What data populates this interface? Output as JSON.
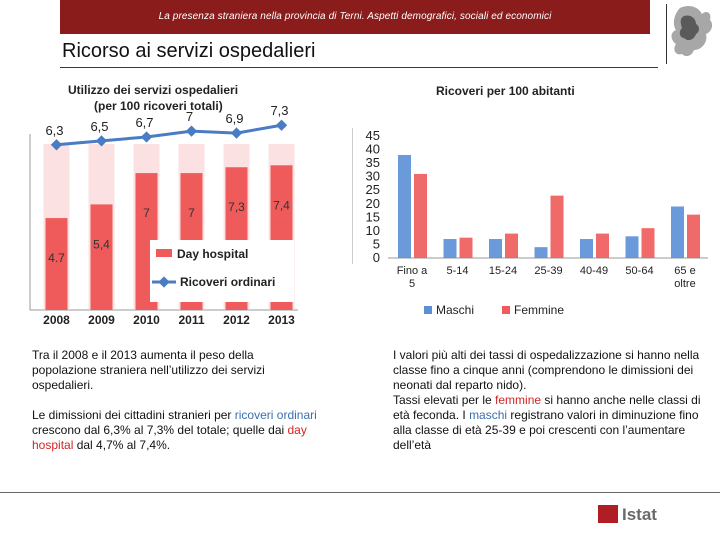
{
  "header": {
    "text": "La presenza straniera nella provincia di Terni. Aspetti demografici, sociali ed economici"
  },
  "slide": {
    "title": "Ricorso ai servizi ospedalieri"
  },
  "colors": {
    "header_band": "#8b1c1c",
    "day_hospital": "#ef5a5a",
    "day_hospital_light": "#f7c9c9",
    "ordinari_line": "#4a7cc3",
    "maschi": "#5b8fd6",
    "femmine": "#ef5a5a"
  },
  "chart_data": [
    {
      "type": "bar",
      "title": "Utilizzo dei servizi ospedalieri",
      "subtitle": "(per 100 ricoveri totali)",
      "categories": [
        "2008",
        "2009",
        "2010",
        "2011",
        "2012",
        "2013"
      ],
      "series": [
        {
          "name": "Day hospital",
          "kind": "bar",
          "values": [
            4.7,
            5.4,
            7,
            7,
            7.3,
            7.4
          ],
          "labels": [
            "4.7",
            "5,4",
            "7",
            "7",
            "7,3",
            "7,4"
          ]
        },
        {
          "name": "Ricoveri ordinari",
          "kind": "line",
          "values": [
            6.3,
            6.5,
            6.7,
            7,
            6.9,
            7.3
          ],
          "labels": [
            "6,3",
            "6,5",
            "6,7",
            "7",
            "6,9",
            "7,3"
          ]
        }
      ],
      "ylim": [
        0,
        9
      ],
      "legend": "inside-bottom-right"
    },
    {
      "type": "bar",
      "title": "Ricoveri per 100 abitanti",
      "categories": [
        "Fino a 5",
        "5-14",
        "15-24",
        "25-39",
        "40-49",
        "50-64",
        "65 e oltre"
      ],
      "category_lines": [
        [
          "Fino a",
          "5"
        ],
        [
          "5-14"
        ],
        [
          "15-24"
        ],
        [
          "25-39"
        ],
        [
          "40-49"
        ],
        [
          "50-64"
        ],
        [
          "65 e",
          "oltre"
        ]
      ],
      "series": [
        {
          "name": "Maschi",
          "values": [
            38,
            7,
            7,
            4,
            7,
            8,
            19
          ]
        },
        {
          "name": "Femmine",
          "values": [
            31,
            7.5,
            9,
            23,
            9,
            11,
            16
          ]
        }
      ],
      "yticks": [
        "0",
        "5",
        "10",
        "15",
        "20",
        "25",
        "30",
        "35",
        "40",
        "45"
      ],
      "ylim": [
        0,
        45
      ],
      "legend": "bottom"
    }
  ],
  "text_left": {
    "p1": "Tra il 2008 e il 2013 aumenta il peso della popolazione straniera nell’utilizzo dei servizi ospedalieri.",
    "p2_a": "Le dimissioni dei cittadini stranieri per ",
    "p2_b": "ricoveri ordinari",
    "p2_c": " crescono dal 6,3% al 7,3% del totale; quelle dai ",
    "p2_d": "day hospital",
    "p2_e": " dal 4,7% al 7,4%."
  },
  "text_right": {
    "p1": "I valori più alti dei tassi di ospedalizzazione si hanno nella classe fino a cinque anni (comprendono le dimissioni dei neonati dal reparto nido).",
    "p2_a": "Tassi elevati per le ",
    "p2_b": "femmine",
    "p2_c": " si hanno anche nelle classi di età feconda. I ",
    "p2_d": "maschi",
    "p2_e": " registrano valori in diminuzione fino alla classe di età 25-39 e poi crescenti con l’aumentare dell’età"
  },
  "footer": {
    "logo_text": "Istat"
  }
}
